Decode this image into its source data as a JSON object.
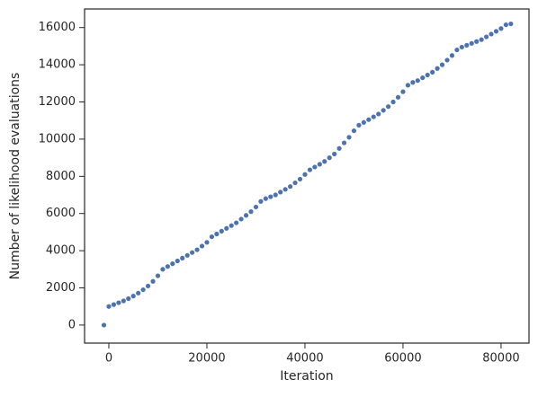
{
  "chart_data": {
    "type": "scatter",
    "xlabel": "Iteration",
    "ylabel": "Number of likelihood evaluations",
    "series": [
      {
        "color": "#4c72b0",
        "x": [
          -1000,
          0,
          1000,
          2000,
          3000,
          4000,
          5000,
          6000,
          7000,
          8000,
          9000,
          10000,
          11000,
          12000,
          13000,
          14000,
          15000,
          16000,
          17000,
          18000,
          19000,
          20000,
          21000,
          22000,
          23000,
          24000,
          25000,
          26000,
          27000,
          28000,
          29000,
          30000,
          31000,
          32000,
          33000,
          34000,
          35000,
          36000,
          37000,
          38000,
          39000,
          40000,
          41000,
          42000,
          43000,
          44000,
          45000,
          46000,
          47000,
          48000,
          49000,
          50000,
          51000,
          52000,
          53000,
          54000,
          55000,
          56000,
          57000,
          58000,
          59000,
          60000,
          61000,
          62000,
          63000,
          64000,
          65000,
          66000,
          67000,
          68000,
          69000,
          70000,
          71000,
          72000,
          73000,
          74000,
          75000,
          76000,
          77000,
          78000,
          79000,
          80000,
          81000,
          82000
        ],
        "values": [
          0,
          1000,
          1100,
          1200,
          1300,
          1420,
          1560,
          1720,
          1900,
          2100,
          2350,
          2650,
          3000,
          3150,
          3300,
          3450,
          3600,
          3750,
          3900,
          4050,
          4250,
          4450,
          4750,
          4900,
          5050,
          5200,
          5350,
          5500,
          5700,
          5900,
          6100,
          6350,
          6650,
          6800,
          6900,
          7000,
          7150,
          7300,
          7450,
          7650,
          7850,
          8100,
          8350,
          8500,
          8650,
          8800,
          9000,
          9200,
          9500,
          9800,
          10100,
          10450,
          10750,
          10900,
          11050,
          11200,
          11350,
          11550,
          11750,
          12000,
          12250,
          12550,
          12900,
          13050,
          13150,
          13300,
          13450,
          13600,
          13800,
          14000,
          14250,
          14500,
          14800,
          14950,
          15050,
          15150,
          15250,
          15350,
          15500,
          15650,
          15800,
          15950,
          16150,
          16200
        ]
      }
    ],
    "xlim": [
      -4950,
      85700
    ],
    "ylim": [
      -970,
      17000
    ],
    "xticks": [
      0,
      20000,
      40000,
      60000,
      80000
    ],
    "yticks": [
      0,
      2000,
      4000,
      6000,
      8000,
      10000,
      12000,
      14000,
      16000
    ]
  }
}
